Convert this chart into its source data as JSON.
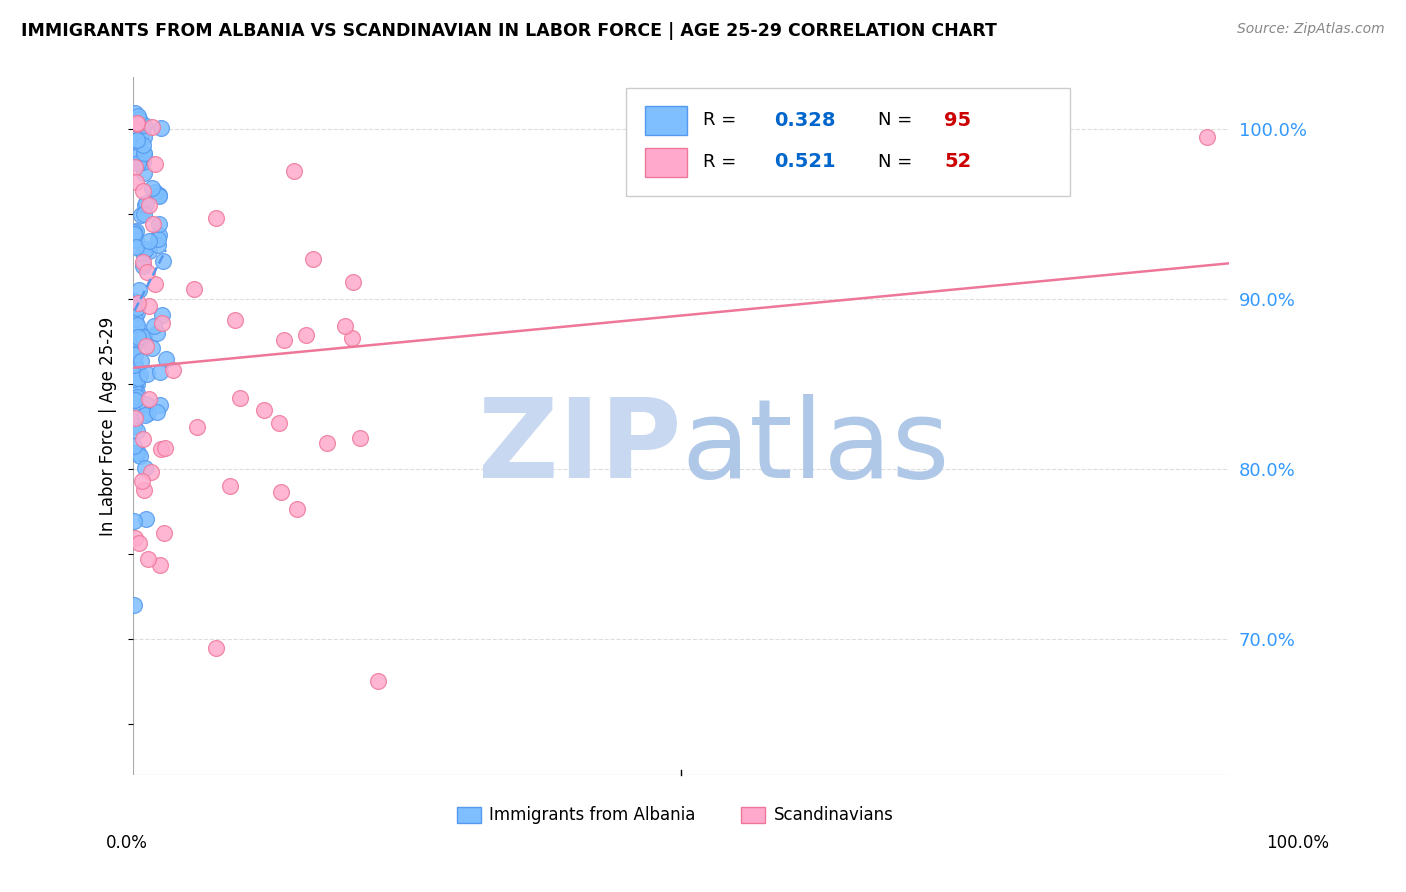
{
  "title": "IMMIGRANTS FROM ALBANIA VS SCANDINAVIAN IN LABOR FORCE | AGE 25-29 CORRELATION CHART",
  "source": "Source: ZipAtlas.com",
  "ylabel": "In Labor Force | Age 25-29",
  "xlim": [
    0.0,
    1.0
  ],
  "ylim": [
    0.62,
    1.03
  ],
  "yticks_right": [
    0.7,
    0.8,
    0.9,
    1.0
  ],
  "ytick_labels_right": [
    "70.0%",
    "80.0%",
    "90.0%",
    "100.0%"
  ],
  "grid_color": "#dddddd",
  "background_color": "#ffffff",
  "albania_color": "#7fbfff",
  "albania_edge_color": "#5599ee",
  "scandinavian_color": "#ffaacc",
  "scandinavian_edge_color": "#ee7799",
  "albania_R": 0.328,
  "albania_N": 95,
  "scandinavian_R": 0.521,
  "scandinavian_N": 52,
  "legend_R_color": "#0066cc",
  "legend_N_color": "#cc0000",
  "watermark_zip_color": "#c8d8f0",
  "watermark_atlas_color": "#b0c8e8",
  "right_tick_color": "#3399ff"
}
